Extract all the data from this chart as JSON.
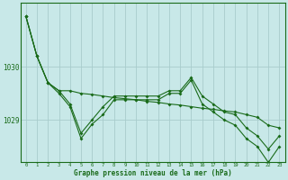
{
  "xlabel": "Graphe pression niveau de la mer (hPa)",
  "bg_color": "#c8e8e8",
  "grid_color": "#a8cccc",
  "line_color": "#1a6b1a",
  "ylim": [
    1028.2,
    1031.2
  ],
  "yticks": [
    1029,
    1030
  ],
  "ytick_labels": [
    "1029",
    "1030"
  ],
  "figsize": [
    3.2,
    2.0
  ],
  "dpi": 100,
  "y_upper": [
    1030.95,
    1030.2,
    1029.7,
    1029.55,
    1029.55,
    1029.5,
    1029.48,
    1029.45,
    1029.42,
    1029.4,
    1029.38,
    1029.35,
    1029.33,
    1029.3,
    1029.28,
    1029.25,
    1029.22,
    1029.2,
    1029.17,
    1029.15,
    1029.1,
    1029.05,
    1028.9,
    1028.85
  ],
  "y_mid": [
    1030.95,
    1030.2,
    1029.7,
    1029.55,
    1029.3,
    1028.75,
    1029.0,
    1029.25,
    1029.45,
    1029.45,
    1029.45,
    1029.45,
    1029.45,
    1029.55,
    1029.55,
    1029.8,
    1029.45,
    1029.3,
    1029.15,
    1029.1,
    1028.85,
    1028.7,
    1028.45,
    1028.7
  ],
  "y_lower": [
    1030.95,
    1030.2,
    1029.7,
    1029.5,
    1029.25,
    1028.65,
    1028.92,
    1029.1,
    1029.38,
    1029.38,
    1029.38,
    1029.38,
    1029.38,
    1029.5,
    1029.5,
    1029.75,
    1029.3,
    1029.15,
    1029.0,
    1028.9,
    1028.65,
    1028.5,
    1028.2,
    1028.5
  ],
  "marker": "D",
  "markersize": 2.0,
  "linewidth": 0.8
}
